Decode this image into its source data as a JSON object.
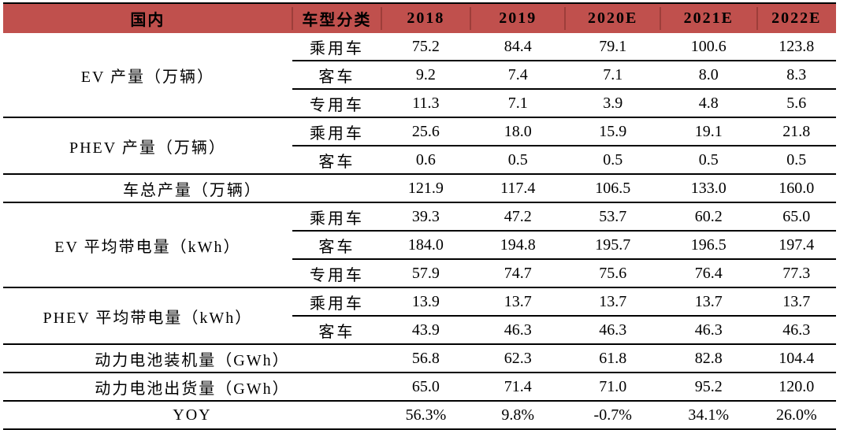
{
  "page": {
    "background": "#ffffff"
  },
  "colors": {
    "header_bg": "#c0504d",
    "header_divider": "#9d3e3a",
    "rule": "#000000",
    "text": "#000000"
  },
  "chart_data": {
    "type": "table",
    "title": "",
    "columns": [
      "国内",
      "车型分类",
      "2018",
      "2019",
      "2020E",
      "2021E",
      "2022E"
    ],
    "row_groups": [
      {
        "label": "EV 产量（万辆）",
        "subrows": [
          {
            "category": "乘用车",
            "values": [
              "75.2",
              "84.4",
              "79.1",
              "100.6",
              "123.8"
            ]
          },
          {
            "category": "客车",
            "values": [
              "9.2",
              "7.4",
              "7.1",
              "8.0",
              "8.3"
            ]
          },
          {
            "category": "专用车",
            "values": [
              "11.3",
              "7.1",
              "3.9",
              "4.8",
              "5.6"
            ]
          }
        ]
      },
      {
        "label": "PHEV 产量（万辆）",
        "subrows": [
          {
            "category": "乘用车",
            "values": [
              "25.6",
              "18.0",
              "15.9",
              "19.1",
              "21.8"
            ]
          },
          {
            "category": "客车",
            "values": [
              "0.6",
              "0.5",
              "0.5",
              "0.5",
              "0.5"
            ]
          }
        ]
      },
      {
        "label": "车总产量（万辆）",
        "subrows": [
          {
            "category": "",
            "values": [
              "121.9",
              "117.4",
              "106.5",
              "133.0",
              "160.0"
            ]
          }
        ]
      },
      {
        "label": "EV 平均带电量（kWh）",
        "subrows": [
          {
            "category": "乘用车",
            "values": [
              "39.3",
              "47.2",
              "53.7",
              "60.2",
              "65.0"
            ]
          },
          {
            "category": "客车",
            "values": [
              "184.0",
              "194.8",
              "195.7",
              "196.5",
              "197.4"
            ]
          },
          {
            "category": "专用车",
            "values": [
              "57.9",
              "74.7",
              "75.6",
              "76.4",
              "77.3"
            ]
          }
        ]
      },
      {
        "label": "PHEV 平均带电量（kWh）",
        "subrows": [
          {
            "category": "乘用车",
            "values": [
              "13.9",
              "13.7",
              "13.7",
              "13.7",
              "13.7"
            ]
          },
          {
            "category": "客车",
            "values": [
              "43.9",
              "46.3",
              "46.3",
              "46.3",
              "46.3"
            ]
          }
        ]
      },
      {
        "label": "动力电池装机量（GWh）",
        "subrows": [
          {
            "category": "",
            "values": [
              "56.8",
              "62.3",
              "61.8",
              "82.8",
              "104.4"
            ]
          }
        ]
      },
      {
        "label": "动力电池出货量（GWh）",
        "subrows": [
          {
            "category": "",
            "values": [
              "65.0",
              "71.4",
              "71.0",
              "95.2",
              "120.0"
            ]
          }
        ]
      },
      {
        "label": "YOY",
        "subrows": [
          {
            "category": "",
            "values": [
              "56.3%",
              "9.8%",
              "-0.7%",
              "34.1%",
              "26.0%"
            ]
          }
        ]
      }
    ]
  }
}
